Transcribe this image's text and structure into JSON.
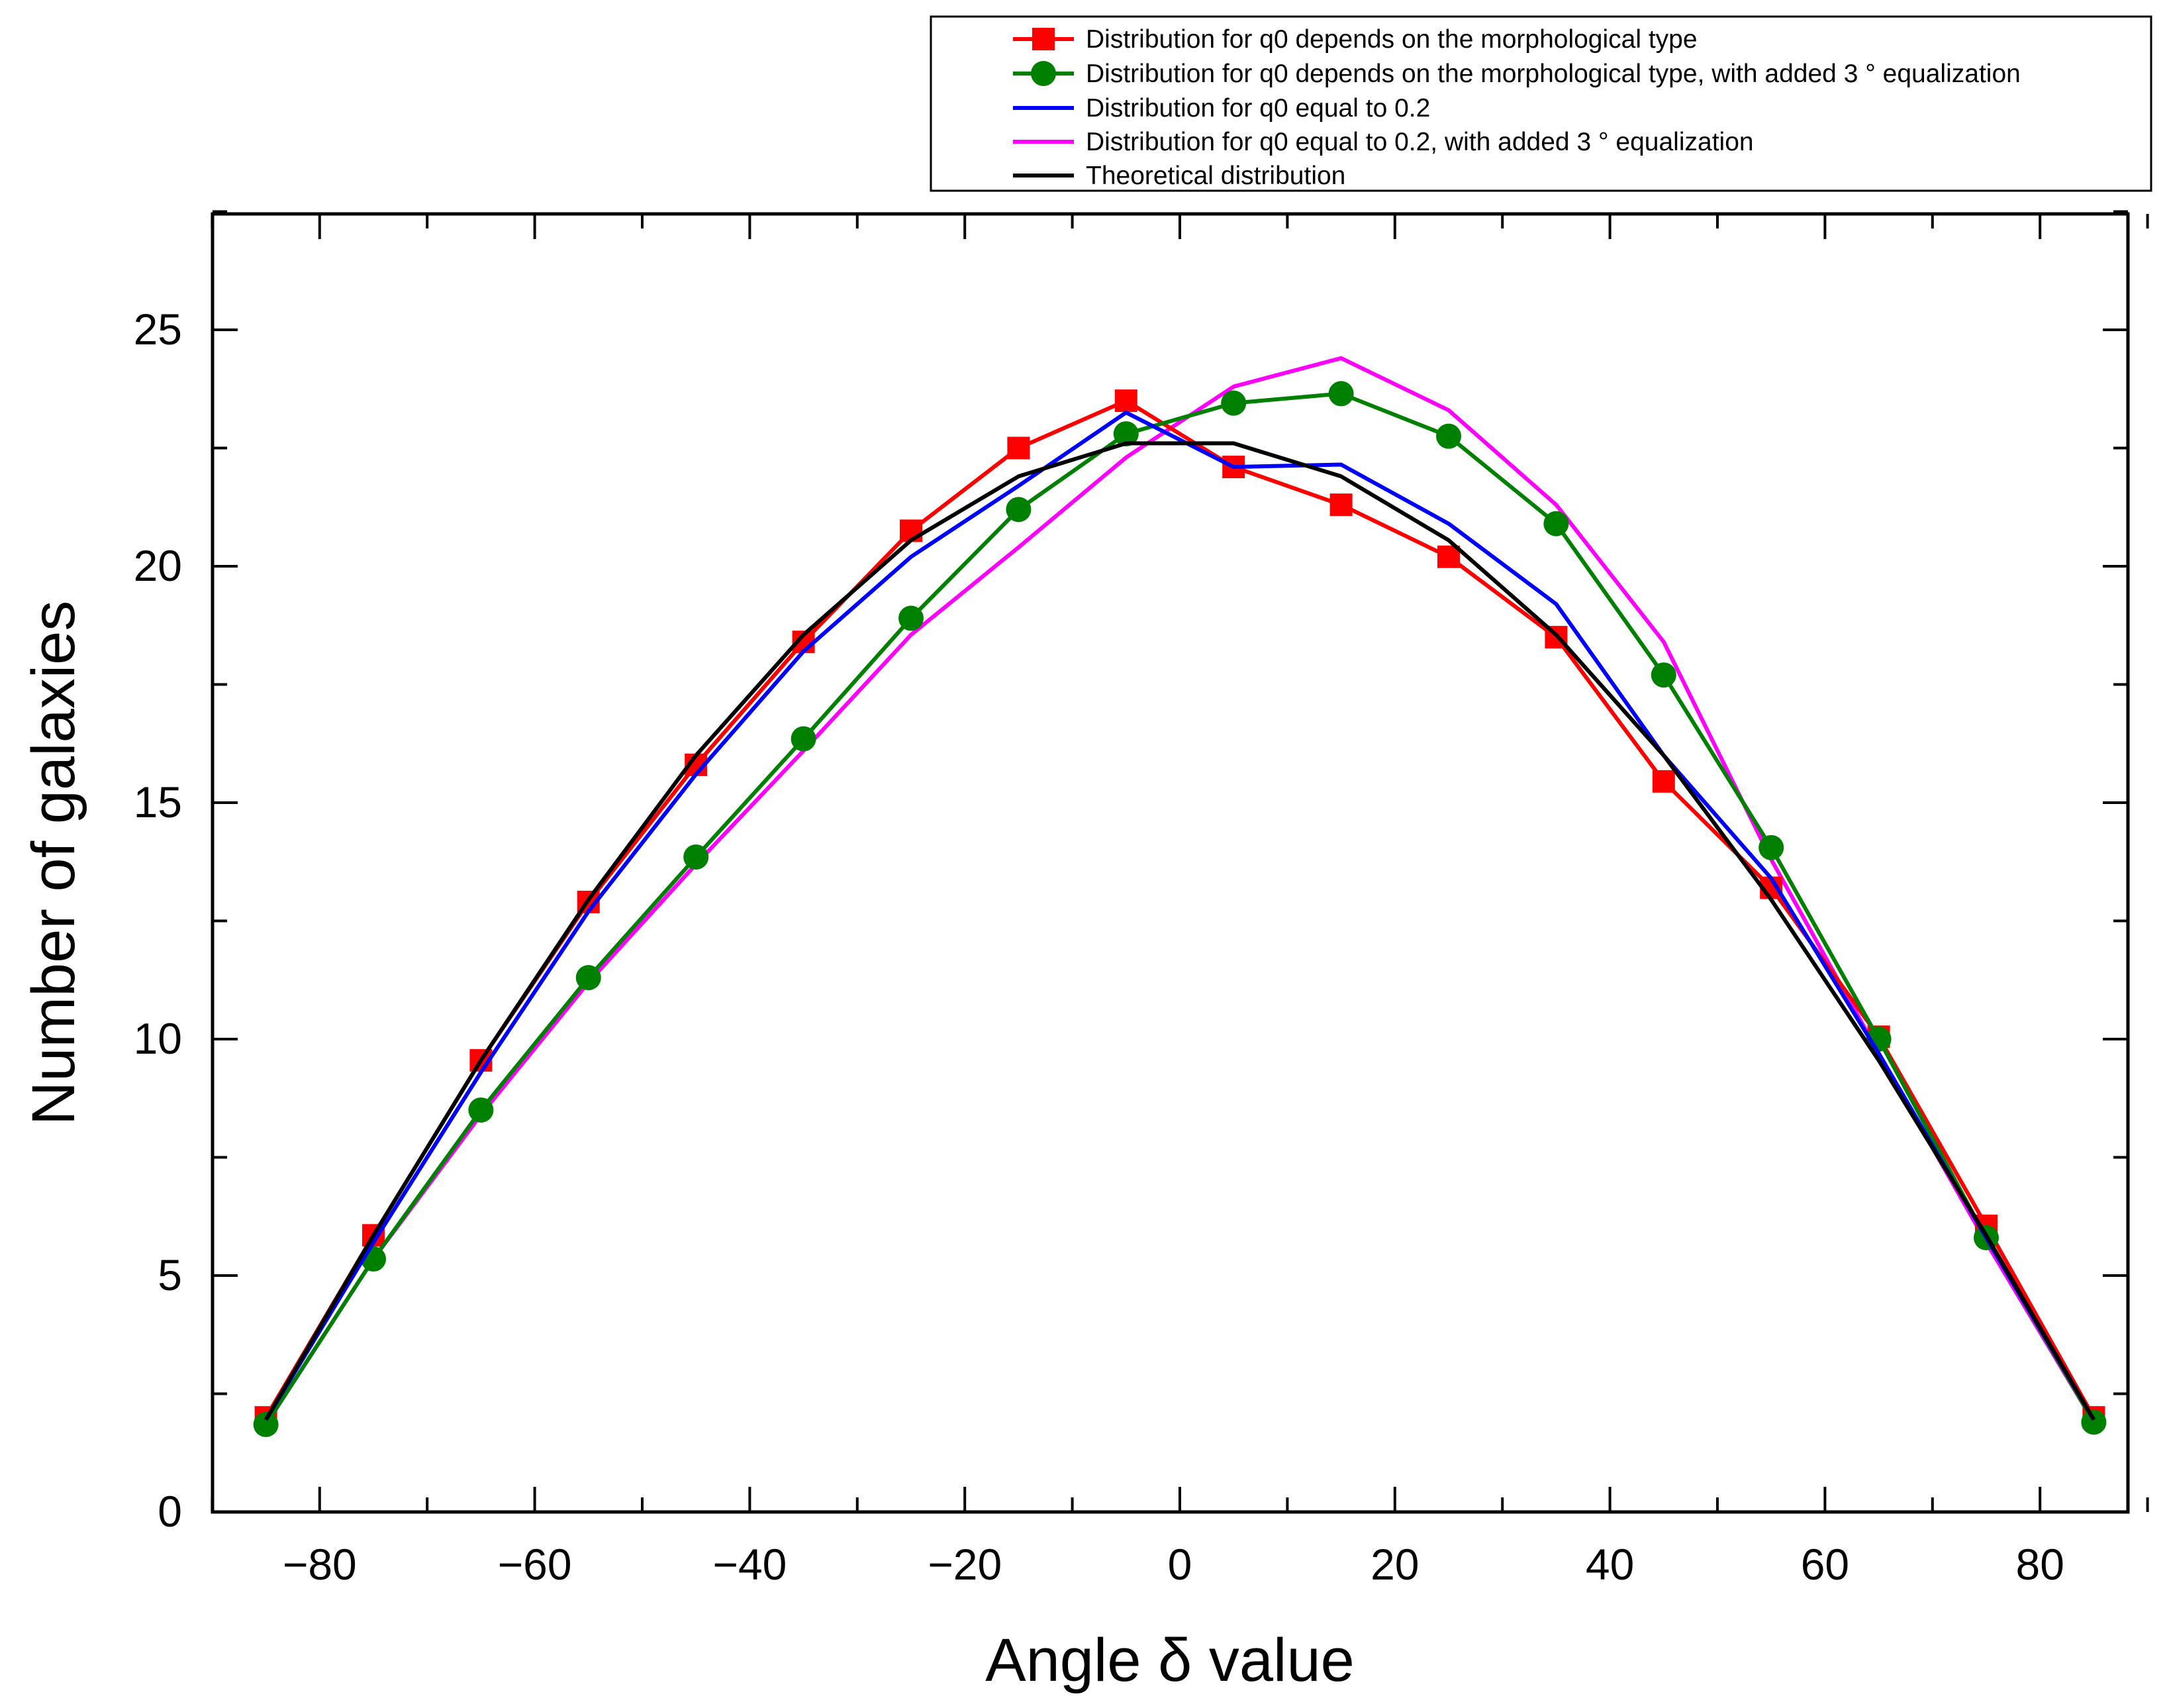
{
  "chart_data": {
    "type": "line",
    "title": "",
    "xlabel": "Angle δ value",
    "ylabel": "Number of galaxies",
    "xlim": [
      -90,
      90
    ],
    "ylim": [
      0,
      27.5
    ],
    "xticks": [
      -80,
      -60,
      -40,
      -20,
      0,
      20,
      40,
      60,
      80
    ],
    "xtick_labels": [
      "−80",
      "−60",
      "−40",
      "−20",
      "0",
      "20",
      "40",
      "60",
      "80"
    ],
    "yticks": [
      0,
      5,
      10,
      15,
      20,
      25
    ],
    "ytick_labels": [
      "0",
      "5",
      "10",
      "15",
      "20",
      "25"
    ],
    "x": [
      -85,
      -75,
      -65,
      -55,
      -45,
      -35,
      -25,
      -15,
      -5,
      5,
      15,
      25,
      35,
      45,
      55,
      65,
      75,
      85
    ],
    "legend_position": "top-right, above plot",
    "series": [
      {
        "name": "Distribution for q0 depends on the morphological type",
        "color": "#ff0000",
        "marker": "square",
        "values": [
          2.0,
          5.85,
          9.55,
          12.9,
          15.8,
          18.4,
          20.75,
          22.5,
          23.5,
          22.1,
          21.3,
          20.2,
          18.5,
          15.45,
          13.2,
          10.05,
          6.05,
          2.0
        ]
      },
      {
        "name": "Distribution for q0 depends on the morphological type, with added 3 ° equalization",
        "color": "#008000",
        "marker": "circle",
        "values": [
          1.85,
          5.35,
          8.5,
          11.3,
          13.85,
          16.35,
          18.9,
          21.2,
          22.8,
          23.45,
          23.65,
          22.75,
          20.9,
          17.7,
          14.05,
          10.0,
          5.8,
          1.9
        ]
      },
      {
        "name": "Distribution for q0 equal to 0.2",
        "color": "#0000ff",
        "marker": "none",
        "values": [
          1.95,
          5.7,
          9.3,
          12.7,
          15.6,
          18.2,
          20.2,
          21.7,
          23.25,
          22.1,
          22.15,
          20.9,
          19.2,
          16.0,
          13.4,
          9.7,
          5.8,
          1.95
        ]
      },
      {
        "name": "Distribution for q0 equal to 0.2, with added 3 ° equalization",
        "color": "#ff00ff",
        "marker": "none",
        "values": [
          1.85,
          5.35,
          8.4,
          11.2,
          13.7,
          16.1,
          18.55,
          20.4,
          22.3,
          23.8,
          24.4,
          23.3,
          21.3,
          18.4,
          13.8,
          9.7,
          5.7,
          1.9
        ]
      },
      {
        "name": "Theoretical distribution",
        "color": "#000000",
        "marker": "none",
        "values": [
          1.95,
          5.85,
          9.55,
          12.95,
          16.0,
          18.55,
          20.55,
          21.9,
          22.6,
          22.6,
          21.9,
          20.55,
          18.55,
          16.0,
          12.95,
          9.55,
          5.85,
          1.95
        ]
      }
    ]
  }
}
